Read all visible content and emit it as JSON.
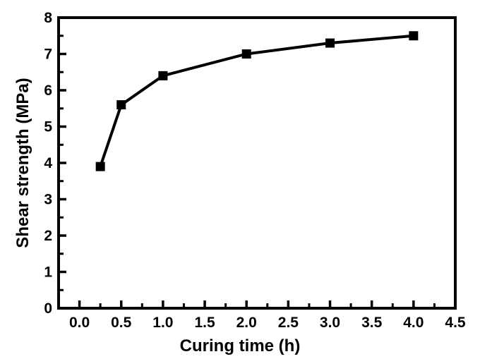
{
  "figure": {
    "background_color": "#ffffff",
    "frame_color": "#000000",
    "line_color": "#000000",
    "marker_color": "#000000",
    "text_color": "#000000"
  },
  "chart_data": {
    "type": "line",
    "title": "",
    "xlabel": "Curing time (h)",
    "ylabel": "Shear strength (MPa)",
    "series": [
      {
        "name": "shear-strength",
        "x": [
          0.25,
          0.5,
          1.0,
          2.0,
          3.0,
          4.0
        ],
        "y": [
          3.9,
          5.6,
          6.4,
          7.0,
          7.3,
          7.5
        ],
        "marker": "filled-square",
        "line_style": "solid"
      }
    ],
    "xlim": [
      -0.25,
      4.5
    ],
    "ylim": [
      0,
      8
    ],
    "x_major_ticks": [
      0.0,
      0.5,
      1.0,
      1.5,
      2.0,
      2.5,
      3.0,
      3.5,
      4.0,
      4.5
    ],
    "x_tick_labels": [
      "0.0",
      "0.5",
      "1.0",
      "1.5",
      "2.0",
      "2.5",
      "3.0",
      "3.5",
      "4.0",
      "4.5"
    ],
    "x_minor_ticks": [
      0.25,
      0.75,
      1.25,
      1.75,
      2.25,
      2.75,
      3.25,
      3.75,
      4.25
    ],
    "y_major_ticks": [
      0,
      1,
      2,
      3,
      4,
      5,
      6,
      7,
      8
    ],
    "y_tick_labels": [
      "0",
      "1",
      "2",
      "3",
      "4",
      "5",
      "6",
      "7",
      "8"
    ],
    "y_minor_ticks": [
      0.5,
      1.5,
      2.5,
      3.5,
      4.5,
      5.5,
      6.5,
      7.5
    ],
    "tick_direction": "in",
    "grid": false,
    "legend": null
  }
}
